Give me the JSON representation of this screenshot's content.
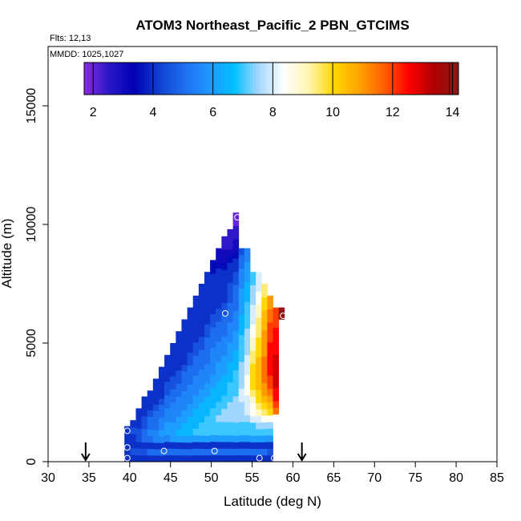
{
  "chart_data": {
    "type": "heatmap",
    "title": "ATOM3 Northeast_Pacific_2 PBN_GTCIMS",
    "flights": "Flts: 12,13",
    "dates": "MMDD: 1025,1027",
    "xlabel": "Latitude (deg N)",
    "ylabel": "Altitude (m)",
    "xlim": [
      30,
      85
    ],
    "ylim": [
      0,
      17500
    ],
    "x_ticks": [
      "30",
      "35",
      "40",
      "45",
      "50",
      "55",
      "60",
      "65",
      "70",
      "75",
      "80",
      "85"
    ],
    "y_ticks": [
      "0",
      "5000",
      "10000",
      "15000"
    ],
    "colorbar": {
      "range": [
        1.7,
        14.2
      ],
      "ticks": [
        "2",
        "4",
        "6",
        "8",
        "10",
        "12",
        "14"
      ]
    },
    "columns": [
      {
        "x": 39.7,
        "y0": 0,
        "y1": 1500,
        "v": [
          4,
          4,
          4,
          4,
          4
        ]
      },
      {
        "x": 40.4,
        "y0": 0,
        "y1": 1750,
        "v": [
          4,
          4.5,
          4,
          4,
          4.5,
          4
        ]
      },
      {
        "x": 41.1,
        "y0": 0,
        "y1": 2250,
        "v": [
          4,
          4.5,
          4,
          4.5,
          4.5,
          4,
          4,
          4
        ]
      },
      {
        "x": 41.8,
        "y0": 0,
        "y1": 2750,
        "v": [
          4,
          4.5,
          4,
          5,
          5,
          4.5,
          4.5,
          4,
          4,
          4
        ]
      },
      {
        "x": 42.5,
        "y0": 0,
        "y1": 3000,
        "v": [
          4,
          5,
          4,
          5,
          5.5,
          5,
          5,
          4.5,
          4,
          4,
          4
        ]
      },
      {
        "x": 43.2,
        "y0": 0,
        "y1": 3500,
        "v": [
          4,
          5,
          4,
          5.5,
          5.5,
          5,
          5,
          5,
          4.5,
          4,
          4,
          4,
          4
        ]
      },
      {
        "x": 43.9,
        "y0": 0,
        "y1": 4000,
        "v": [
          4,
          5,
          4,
          5.5,
          6,
          5.5,
          5.5,
          5,
          5,
          4.5,
          4,
          4,
          4,
          4,
          4
        ]
      },
      {
        "x": 44.6,
        "y0": 0,
        "y1": 4500,
        "v": [
          4,
          5,
          4,
          5.5,
          6,
          6,
          5.5,
          5.5,
          5,
          5,
          4.5,
          4.5,
          4,
          4,
          4,
          4
        ]
      },
      {
        "x": 45.3,
        "y0": 0,
        "y1": 5000,
        "v": [
          4,
          5,
          4,
          6,
          6,
          6,
          5.5,
          5.5,
          5.5,
          5,
          5,
          4.5,
          4.5,
          4,
          4,
          4,
          4,
          4
        ]
      },
      {
        "x": 46.0,
        "y0": 0,
        "y1": 5500,
        "v": [
          4,
          5,
          4,
          6,
          6.5,
          6,
          6,
          5.5,
          5.5,
          5.5,
          5,
          5,
          4.5,
          4.5,
          4,
          4,
          4,
          4,
          4,
          4
        ]
      },
      {
        "x": 46.7,
        "y0": 0,
        "y1": 6000,
        "v": [
          4,
          5,
          4,
          6,
          6.5,
          6.5,
          6,
          6,
          5.5,
          5.5,
          5.5,
          5,
          5,
          5,
          4.5,
          4,
          4,
          4,
          4,
          4,
          4,
          4
        ]
      },
      {
        "x": 47.4,
        "y0": 0,
        "y1": 6500,
        "v": [
          4,
          5,
          4,
          6,
          6.5,
          6.5,
          6.5,
          6,
          6,
          5.5,
          5.5,
          5.5,
          5,
          5,
          5,
          4.5,
          4.5,
          4,
          4,
          4,
          4,
          4,
          4,
          4
        ]
      },
      {
        "x": 48.1,
        "y0": 0,
        "y1": 7000,
        "v": [
          4,
          5,
          4,
          6,
          7,
          6.5,
          6.5,
          6.5,
          6,
          6,
          5.5,
          5.5,
          5.5,
          5,
          5,
          5,
          4.5,
          4.5,
          4,
          4,
          4,
          4,
          4,
          4,
          4
        ]
      },
      {
        "x": 48.8,
        "y0": 0,
        "y1": 7500,
        "v": [
          4,
          5,
          4,
          6,
          7,
          7,
          6.5,
          6.5,
          6.5,
          6,
          6,
          5.5,
          5.5,
          5.5,
          5,
          5,
          5,
          4.5,
          4.5,
          4,
          4,
          4,
          4,
          4,
          4,
          4,
          4
        ]
      },
      {
        "x": 49.5,
        "y0": 0,
        "y1": 8000,
        "v": [
          4,
          5,
          4,
          6,
          7,
          7,
          7,
          6.5,
          6.5,
          6.5,
          6,
          6,
          5.5,
          5.5,
          5.5,
          5,
          5,
          5,
          5,
          4.5,
          4.5,
          4,
          4,
          4,
          4,
          4,
          4,
          4,
          4
        ]
      },
      {
        "x": 50.2,
        "y0": 0,
        "y1": 8500,
        "v": [
          4,
          5,
          4,
          6,
          7,
          7,
          7,
          7,
          6.5,
          6.5,
          6.5,
          6,
          6,
          5.5,
          5.5,
          5.5,
          5.5,
          5,
          5,
          5,
          4.5,
          4.5,
          4,
          4,
          4,
          4,
          4,
          4,
          3.5,
          3.5
        ]
      },
      {
        "x": 50.9,
        "y0": 0,
        "y1": 9000,
        "v": [
          4,
          5,
          4,
          6,
          7,
          7,
          7.5,
          7,
          7,
          6.5,
          6.5,
          6.5,
          6,
          6,
          6,
          5.5,
          5.5,
          5.5,
          5,
          5,
          5,
          4.5,
          4.5,
          4,
          4,
          4,
          4,
          4,
          4,
          3.5,
          3,
          3
        ]
      },
      {
        "x": 51.6,
        "y0": 0,
        "y1": 9500,
        "v": [
          4,
          5,
          4,
          6,
          7,
          7,
          7.5,
          7.5,
          7,
          7,
          6.5,
          6.5,
          6.5,
          6,
          6,
          6,
          5.5,
          5.5,
          5.5,
          5,
          5,
          5,
          4.5,
          4.5,
          4,
          4,
          4,
          4,
          4,
          3.5,
          3,
          3,
          2.5,
          2.5
        ]
      },
      {
        "x": 52.3,
        "y0": 0,
        "y1": 9800,
        "v": [
          4,
          5,
          4,
          6,
          7,
          7,
          7.5,
          7.5,
          7.5,
          7,
          7,
          7,
          6.5,
          6.5,
          6.5,
          6,
          6,
          6,
          5.5,
          5.5,
          5.5,
          5,
          5,
          5,
          4.5,
          4.5,
          4.5,
          4,
          4,
          4,
          3.5,
          3,
          2.5,
          2.5,
          2.5
        ]
      },
      {
        "x": 53.0,
        "y0": 0,
        "y1": 10500,
        "v": [
          4,
          5,
          4,
          6,
          7,
          7,
          7.5,
          7.5,
          7.5,
          7.5,
          7,
          7,
          7,
          7,
          6.5,
          6.5,
          6.5,
          6,
          6,
          6,
          5.5,
          5.5,
          5.5,
          5,
          5,
          5,
          5,
          4.5,
          4.5,
          4,
          4,
          3.5,
          3,
          3,
          2.5,
          2.5,
          2,
          2
        ]
      },
      {
        "x": 53.7,
        "y0": 0,
        "y1": 9000,
        "v": [
          4,
          5,
          4,
          6,
          7,
          7,
          7.5,
          7.5,
          7.5,
          8,
          8,
          7.5,
          7.5,
          7.5,
          7.5,
          7,
          7,
          7,
          7,
          6.5,
          6.5,
          6.5,
          6,
          6,
          6,
          6,
          5.5,
          5.5,
          5.5,
          5,
          5,
          4.5
        ]
      },
      {
        "x": 54.4,
        "y0": 0,
        "y1": 9000,
        "v": [
          4,
          5,
          4,
          6,
          7,
          7,
          7.5,
          8,
          8,
          8,
          8.5,
          8.5,
          8.5,
          8,
          8,
          8,
          7.5,
          7.5,
          7.5,
          7.5,
          7,
          7,
          7,
          7,
          6.5,
          6.5,
          6.5,
          6,
          6,
          6,
          5.5,
          5.5
        ]
      },
      {
        "x": 55.1,
        "y0": 0,
        "y1": 8000,
        "v": [
          4,
          5,
          4,
          6,
          7,
          7,
          8,
          8.5,
          8.5,
          9,
          9.5,
          10,
          10,
          10,
          10,
          9.5,
          9.5,
          9,
          9,
          8.5,
          8.5,
          8,
          8,
          8,
          7.5,
          7.5,
          7.5,
          7,
          7
        ]
      },
      {
        "x": 55.8,
        "y0": 0,
        "y1": 8000,
        "v": [
          4,
          5,
          4,
          6,
          7,
          7.5,
          8,
          9,
          9.5,
          10,
          10,
          10.5,
          10.5,
          10.5,
          10.5,
          10.5,
          10,
          10,
          10,
          9.5,
          9.5,
          9.5,
          9,
          9,
          8.5,
          8.5,
          8,
          8,
          8
        ]
      },
      {
        "x": 56.5,
        "y0": 0,
        "y1": 7500,
        "v": [
          4,
          5,
          4,
          6,
          7,
          7.5,
          8.5,
          9.5,
          10,
          10.5,
          11,
          11,
          11.5,
          11.5,
          11.5,
          11.5,
          11,
          11,
          11,
          11,
          10.5,
          10.5,
          10.5,
          10,
          10,
          9.5,
          9.5
        ]
      },
      {
        "x": 57.2,
        "y0": 0,
        "y1": 7000,
        "v": [
          4,
          4.5,
          4,
          6,
          7,
          7.5,
          8.5,
          10,
          10.5,
          11,
          11.5,
          12,
          12,
          12.5,
          12.5,
          12.5,
          12.5,
          12.5,
          12,
          12,
          12,
          11.5,
          11.5,
          11,
          11
        ]
      },
      {
        "x": 57.9,
        "y0": 2000,
        "y1": 6500,
        "v": [
          11.5,
          12,
          12.5,
          12.5,
          13,
          13,
          13,
          13,
          13,
          12.5,
          12.5,
          12.5,
          12.5,
          12,
          12,
          12
        ]
      },
      {
        "x": 58.6,
        "y0": 6000,
        "y1": 6500,
        "v": [
          14
        ]
      }
    ],
    "sample_points": [
      {
        "lat": 39.7,
        "alt": 150
      },
      {
        "lat": 39.7,
        "alt": 600
      },
      {
        "lat": 39.7,
        "alt": 1300
      },
      {
        "lat": 44.2,
        "alt": 450
      },
      {
        "lat": 50.4,
        "alt": 450
      },
      {
        "lat": 51.7,
        "alt": 6250
      },
      {
        "lat": 53.2,
        "alt": 10300
      },
      {
        "lat": 55.9,
        "alt": 150
      },
      {
        "lat": 57.7,
        "alt": 150
      },
      {
        "lat": 58.8,
        "alt": 6150
      }
    ],
    "arrows_lat": [
      34.6,
      61.1
    ],
    "colors": {
      "scale": [
        "#8b2be2",
        "#2a17c8",
        "#0000b4",
        "#1040d0",
        "#1e6ff0",
        "#2196ff",
        "#00bfff",
        "#a6d8ff",
        "#ffffff",
        "#fff6b0",
        "#ffd700",
        "#ffa500",
        "#ff6000",
        "#ff0000",
        "#b00000",
        "#8b1a1a"
      ],
      "axis": "#000000",
      "marker": "#ffffff"
    }
  }
}
